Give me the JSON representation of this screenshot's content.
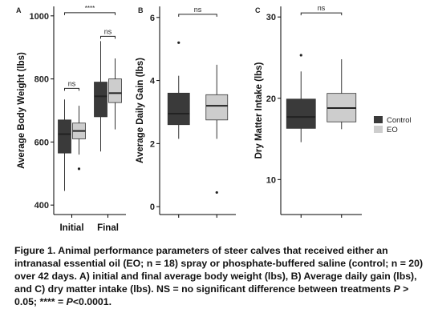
{
  "chart_data": [
    {
      "type": "box",
      "panel_label": "A",
      "ylabel": "Average Body Weight (lbs)",
      "categories": [
        "Initial",
        "Final"
      ],
      "ylim": [
        370,
        1030
      ],
      "yticks": [
        400,
        600,
        800,
        1000
      ],
      "series": [
        {
          "name": "Control",
          "boxes": [
            {
              "category": "Initial",
              "whisker_low": 445,
              "q1": 565,
              "median": 625,
              "q3": 670,
              "whisker_high": 735,
              "outliers": []
            },
            {
              "category": "Final",
              "whisker_low": 570,
              "q1": 680,
              "median": 745,
              "q3": 790,
              "whisker_high": 920,
              "outliers": []
            }
          ]
        },
        {
          "name": "EO",
          "boxes": [
            {
              "category": "Initial",
              "whisker_low": 560,
              "q1": 610,
              "median": 635,
              "q3": 660,
              "whisker_high": 715,
              "outliers": [
                515
              ]
            },
            {
              "category": "Final",
              "whisker_low": 640,
              "q1": 725,
              "median": 755,
              "q3": 800,
              "whisker_high": 865,
              "outliers": []
            }
          ]
        }
      ],
      "annotations": [
        {
          "type": "bracket",
          "between": [
            "Initial:Control",
            "Initial:EO"
          ],
          "y": 770,
          "label": "ns"
        },
        {
          "type": "bracket",
          "between": [
            "Final:Control",
            "Final:EO"
          ],
          "y": 935,
          "label": "ns"
        },
        {
          "type": "bracket",
          "between": [
            "Initial:Control",
            "Final:EO"
          ],
          "y": 1010,
          "label": "****"
        }
      ]
    },
    {
      "type": "box",
      "panel_label": "B",
      "ylabel": "Average Daily Gain (lbs)",
      "categories": [
        "Control",
        "EO"
      ],
      "ylim": [
        -0.25,
        6.35
      ],
      "yticks": [
        0,
        2,
        4,
        6
      ],
      "series": [
        {
          "name": "Control",
          "boxes": [
            {
              "category": "Control",
              "whisker_low": 2.15,
              "q1": 2.6,
              "median": 2.95,
              "q3": 3.6,
              "whisker_high": 4.15,
              "outliers": [
                5.2
              ]
            }
          ]
        },
        {
          "name": "EO",
          "boxes": [
            {
              "category": "EO",
              "whisker_low": 2.15,
              "q1": 2.75,
              "median": 3.2,
              "q3": 3.55,
              "whisker_high": 4.5,
              "outliers": [
                0.45
              ]
            }
          ]
        }
      ],
      "annotations": [
        {
          "type": "bracket",
          "between": [
            "Control",
            "EO"
          ],
          "y": 6.1,
          "label": "ns"
        }
      ]
    },
    {
      "type": "box",
      "panel_label": "C",
      "ylabel": "Dry Matter Intake (lbs)",
      "categories": [
        "Control",
        "EO"
      ],
      "ylim": [
        5.7,
        31.3
      ],
      "yticks": [
        10,
        20,
        30
      ],
      "series": [
        {
          "name": "Control",
          "boxes": [
            {
              "category": "Control",
              "whisker_low": 14.6,
              "q1": 16.3,
              "median": 17.7,
              "q3": 19.9,
              "whisker_high": 23.3,
              "outliers": [
                25.3
              ]
            }
          ]
        },
        {
          "name": "EO",
          "boxes": [
            {
              "category": "EO",
              "whisker_low": 16.2,
              "q1": 17.1,
              "median": 18.8,
              "q3": 20.6,
              "whisker_high": 24.8,
              "outliers": []
            }
          ]
        }
      ],
      "annotations": [
        {
          "type": "bracket",
          "between": [
            "Control",
            "EO"
          ],
          "y": 30.5,
          "label": "ns"
        }
      ]
    }
  ],
  "legend": {
    "placement": "right",
    "items": [
      {
        "label": "Control",
        "color": "#3a3a3a"
      },
      {
        "label": "EO",
        "color": "#cdcdcd"
      }
    ]
  },
  "colors": {
    "Control": "#3a3a3a",
    "EO": "#cdcdcd"
  },
  "caption": {
    "title": "Figure 1.",
    "t1": " Animal performance parameters of steer calves that received either an intranasal essential oil (EO; n = 18) spray or phosphate-buffered saline (control; n = 20) over 42 days. A) initial and final average body weight (lbs), B) Average daily gain (lbs), and C) dry matter intake (lbs). NS = no significant difference between treatments ",
    "p1": "P",
    "t2": " > 0.05; **** = ",
    "p2": "P",
    "t3": "<0.0001."
  }
}
